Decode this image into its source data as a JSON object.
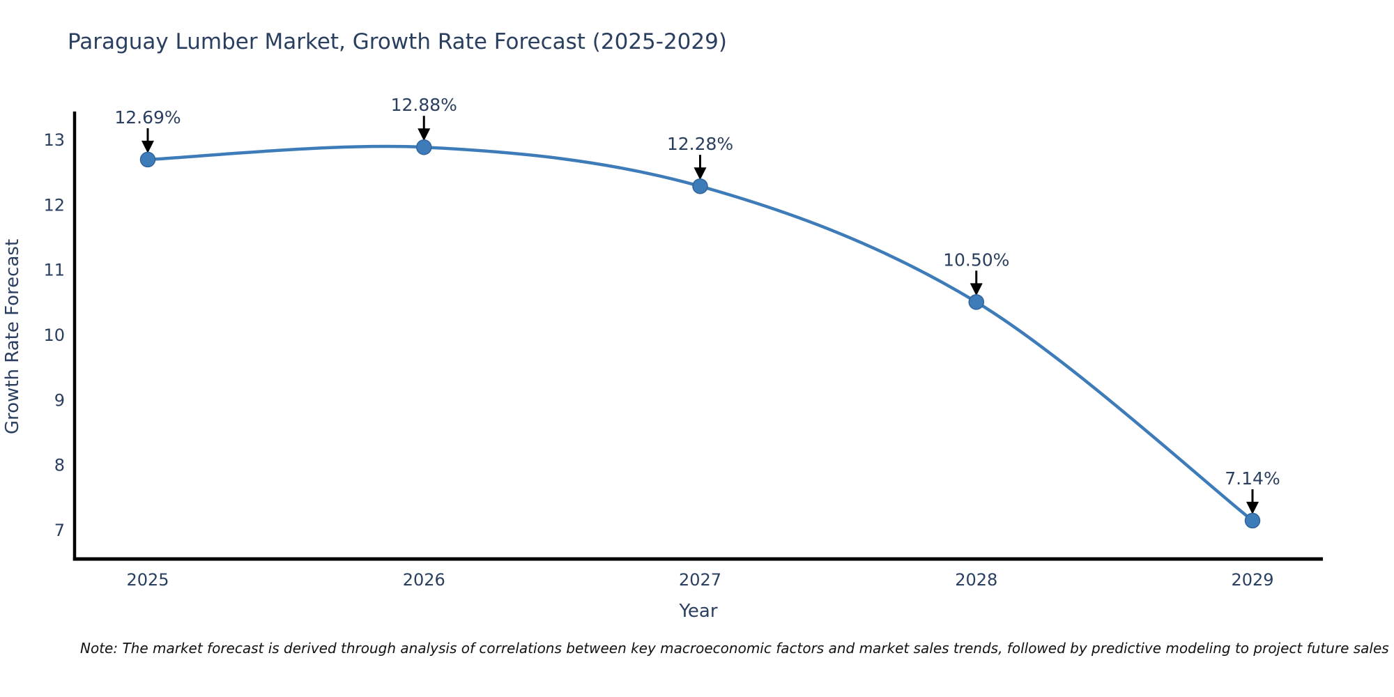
{
  "title": "Paraguay Lumber Market, Growth Rate Forecast (2025-2029)",
  "note": "Note: The market forecast is derived through analysis of correlations between key macroeconomic factors and market sales trends, followed by predictive modeling to project future sales",
  "chart_data": {
    "type": "line",
    "line_shape": "spline",
    "title": "Paraguay Lumber Market, Growth Rate Forecast (2025-2029)",
    "xlabel": "Year",
    "ylabel": "Growth Rate Forecast",
    "categories": [
      "2025",
      "2026",
      "2027",
      "2028",
      "2029"
    ],
    "series": [
      {
        "name": "Growth Rate Forecast",
        "values": [
          12.69,
          12.88,
          12.28,
          10.5,
          7.14
        ]
      }
    ],
    "point_labels": [
      "12.69%",
      "12.88%",
      "12.28%",
      "10.50%",
      "7.14%"
    ],
    "yticks": [
      7,
      8,
      9,
      10,
      11,
      12,
      13
    ],
    "ylim": [
      6.85,
      13.45
    ],
    "grid": false,
    "legend": "none",
    "annotations": "labels above points with black down arrows",
    "colors": {
      "line": "#3E7CB9",
      "marker_fill": "#3E7CB9",
      "marker_edge": "#2F639A",
      "axis_line": "#000000",
      "arrow": "#000000",
      "text": "#2a3f5f",
      "note_text": "#111111",
      "background": "#ffffff"
    }
  }
}
